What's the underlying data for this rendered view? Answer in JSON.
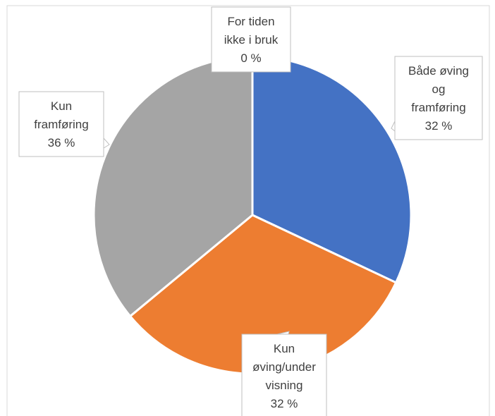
{
  "chart_data": {
    "type": "pie",
    "title": "",
    "slices": [
      {
        "label": "Både øving og framføring",
        "label_lines": [
          "Både øving",
          "og",
          "framføring"
        ],
        "value": 32,
        "display": "32 %",
        "color": "#4472C4"
      },
      {
        "label": "Kun øving/undervisning",
        "label_lines": [
          "Kun",
          "øving/under",
          "visning"
        ],
        "value": 32,
        "display": "32 %",
        "color": "#ED7D31"
      },
      {
        "label": "Kun framføring",
        "label_lines": [
          "Kun",
          "framføring"
        ],
        "value": 36,
        "display": "36 %",
        "color": "#A5A5A5"
      },
      {
        "label": "For tiden ikke i bruk",
        "label_lines": [
          "For tiden",
          "ikke i bruk"
        ],
        "value": 0,
        "display": "0 %",
        "color": "#FFC000"
      }
    ],
    "start_angle_deg": 0,
    "direction": "clockwise",
    "legend": "none",
    "data_labels": "callouts"
  }
}
